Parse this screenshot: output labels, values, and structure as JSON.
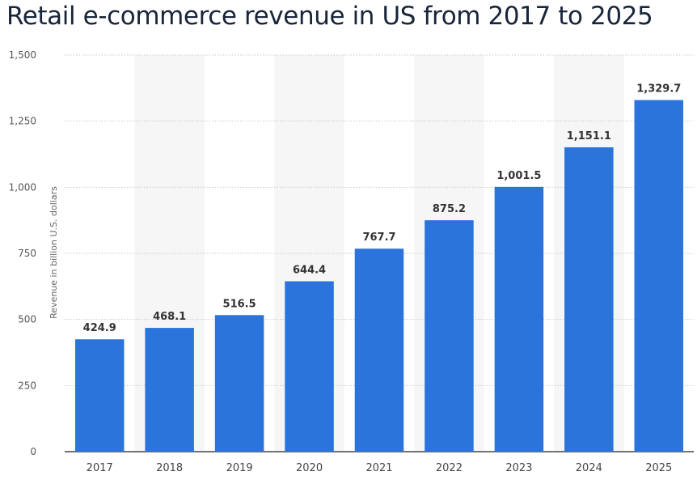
{
  "title": "Retail e-commerce revenue in US from 2017 to 2025",
  "colors": {
    "bar": "#2a74dc",
    "band": "#f6f6f6",
    "grid": "#c8c8c8",
    "baseline": "#222222"
  },
  "chart_data": {
    "type": "bar",
    "title": "Retail e-commerce revenue in US from 2017 to 2025",
    "xlabel": "",
    "ylabel": "Revenue in billion U.S. dollars",
    "ylim": [
      0,
      1500
    ],
    "yticks": [
      0,
      250,
      500,
      750,
      1000,
      1250,
      1500
    ],
    "ytick_labels": [
      "0",
      "250",
      "500",
      "750",
      "1,000",
      "1,250",
      "1,500"
    ],
    "grid": true,
    "legend": "none",
    "categories": [
      "2017",
      "2018",
      "2019",
      "2020",
      "2021",
      "2022",
      "2023",
      "2024",
      "2025"
    ],
    "values": [
      424.9,
      468.1,
      516.5,
      644.4,
      767.7,
      875.2,
      1001.5,
      1151.1,
      1329.7
    ],
    "value_labels": [
      "424.9",
      "468.1",
      "516.5",
      "644.4",
      "767.7",
      "875.2",
      "1,001.5",
      "1,151.1",
      "1,329.7"
    ]
  }
}
